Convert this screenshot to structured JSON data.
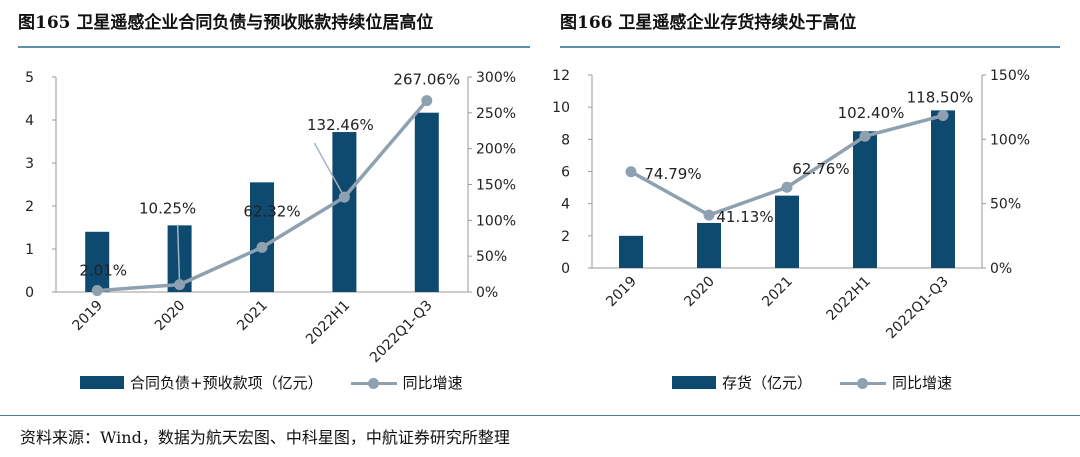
{
  "colors": {
    "bar": "#0e4a70",
    "line": "#8fa1b0",
    "rule": "#5d8fa8"
  },
  "left": {
    "title": "图165  卫星遥感企业合同负债与预收账款持续位居高位",
    "legend_bar": "合同负债+预收款项（亿元）",
    "legend_line": "同比增速"
  },
  "right": {
    "title": "图166  卫星遥感企业存货持续处于高位",
    "legend_bar": "存货（亿元）",
    "legend_line": "同比增速"
  },
  "source": "资料来源：Wind，数据为航天宏图、中科星图，中航证券研究所整理",
  "chart_data": [
    {
      "type": "bar+line",
      "title": "图165  卫星遥感企业合同负债与预收账款持续位居高位",
      "categories": [
        "2019",
        "2020",
        "2021",
        "2022H1",
        "2022Q1-Q3"
      ],
      "series": [
        {
          "name": "合同负债+预收款项（亿元）",
          "type": "bar",
          "axis": "left",
          "values": [
            1.4,
            1.55,
            2.55,
            3.72,
            4.17
          ]
        },
        {
          "name": "同比增速",
          "type": "line",
          "axis": "right",
          "values": [
            2.01,
            10.25,
            62.32,
            132.46,
            267.06
          ],
          "labels": [
            "2.01%",
            "10.25%",
            "62.32%",
            "132.46%",
            "267.06%"
          ]
        }
      ],
      "y_left": {
        "min": 0,
        "max": 5,
        "ticks": [
          "0",
          "1",
          "2",
          "3",
          "4",
          "5"
        ]
      },
      "y_right": {
        "min": 0,
        "max": 300,
        "ticks": [
          "0%",
          "50%",
          "100%",
          "150%",
          "200%",
          "250%",
          "300%"
        ]
      },
      "grid": false
    },
    {
      "type": "bar+line",
      "title": "图166  卫星遥感企业存货持续处于高位",
      "categories": [
        "2019",
        "2020",
        "2021",
        "2022H1",
        "2022Q1-Q3"
      ],
      "series": [
        {
          "name": "存货（亿元）",
          "type": "bar",
          "axis": "left",
          "values": [
            2.0,
            2.8,
            4.5,
            8.5,
            9.8
          ]
        },
        {
          "name": "同比增速",
          "type": "line",
          "axis": "right",
          "values": [
            74.79,
            41.13,
            62.76,
            102.4,
            118.5
          ],
          "labels": [
            "74.79%",
            "41.13%",
            "62.76%",
            "102.40%",
            "118.50%"
          ]
        }
      ],
      "y_left": {
        "min": 0,
        "max": 12,
        "ticks": [
          "0",
          "2",
          "4",
          "6",
          "8",
          "10",
          "12"
        ]
      },
      "y_right": {
        "min": 0,
        "max": 150,
        "ticks": [
          "0%",
          "50%",
          "100%",
          "150%"
        ]
      },
      "grid": false
    }
  ]
}
